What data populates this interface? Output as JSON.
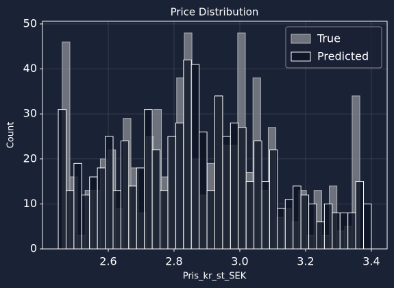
{
  "chart_data": {
    "type": "histogram",
    "title": "Price Distribution",
    "xlabel": "Pris_kr_st_SEK",
    "ylabel": "Count",
    "xlim": [
      2.4,
      3.448
    ],
    "ylim": [
      0,
      50.6
    ],
    "xticks": [
      2.6,
      2.8,
      {
        "value": 3,
        "label": "3.0"
      },
      3.2,
      3.4
    ],
    "yticks": [
      0,
      10,
      20,
      30,
      40,
      50
    ],
    "grid": true,
    "legend": "upper right",
    "series": [
      {
        "name": "True",
        "color": "#8a8d94",
        "edgecolor": "#b0b3b8",
        "bins": [
          2.46,
          2.4832,
          2.5064,
          2.5296,
          2.5528,
          2.576,
          2.5992,
          2.6224,
          2.6456,
          2.6688,
          2.692,
          2.7152,
          2.7384,
          2.7616,
          2.7848,
          2.808,
          2.8312,
          2.8544,
          2.8776,
          2.9008,
          2.924,
          2.9472,
          2.9704,
          2.9936,
          3.0168,
          3.04,
          3.0632,
          3.0864,
          3.1096,
          3.1328,
          3.156,
          3.1792,
          3.2024,
          3.2256,
          3.2488,
          3.272,
          3.2952,
          3.3184,
          3.3416,
          3.3648
        ],
        "values": [
          46,
          16,
          3,
          13,
          13,
          20,
          22,
          9,
          29,
          18,
          8,
          25,
          31,
          16,
          25,
          38,
          48,
          20,
          12,
          19,
          34,
          23,
          23,
          48,
          17,
          38,
          13,
          27,
          7,
          9,
          6,
          13,
          3,
          13,
          3,
          14,
          4,
          5,
          34
        ]
      },
      {
        "name": "Predicted",
        "color": "#0d1424",
        "edgecolor": "#ffffff",
        "bins": [
          2.448,
          2.4718,
          2.4956,
          2.5194,
          2.5432,
          2.567,
          2.5908,
          2.6146,
          2.6384,
          2.6622,
          2.686,
          2.7098,
          2.7336,
          2.7574,
          2.7812,
          2.805,
          2.8288,
          2.8526,
          2.8764,
          2.9002,
          2.924,
          2.9478,
          2.9716,
          2.9954,
          3.0192,
          3.043,
          3.0668,
          3.0906,
          3.1144,
          3.1382,
          3.162,
          3.1858,
          3.2096,
          3.2334,
          3.2572,
          3.281,
          3.3048,
          3.3286,
          3.3524,
          3.3762,
          3.4
        ],
        "values": [
          31,
          13,
          19,
          12,
          16,
          18,
          25,
          13,
          24,
          14,
          18,
          31,
          22,
          13,
          25,
          28,
          42,
          41,
          26,
          13,
          34,
          25,
          28,
          27,
          15,
          24,
          15,
          22,
          9,
          11,
          14,
          12,
          10,
          6,
          10,
          8,
          8,
          8,
          15,
          10
        ]
      }
    ]
  }
}
